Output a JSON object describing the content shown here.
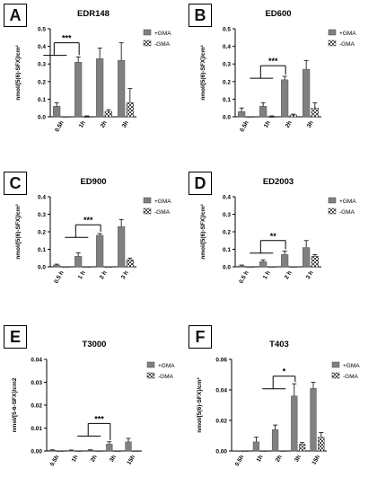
{
  "colors": {
    "plus_gma": "#808080",
    "minus_gma_fill": "#e8e8e8",
    "axis": "#000000"
  },
  "legend_icons": {
    "plus_gma": "solid-gray-swatch",
    "minus_gma": "checkered-swatch"
  },
  "panels": [
    {
      "letter": "A"
    },
    {
      "letter": "B"
    },
    {
      "letter": "C"
    },
    {
      "letter": "D"
    },
    {
      "letter": "E"
    },
    {
      "letter": "F"
    }
  ],
  "chart_data": [
    {
      "panel": "A",
      "type": "bar",
      "title": "EDR148",
      "ylabel": "nmol/[5(6)-SFX]/cm²",
      "categories": [
        "0.5h",
        "1h",
        "2h",
        "3h"
      ],
      "ylim": [
        0,
        0.5
      ],
      "yticks": [
        "0.0",
        "0.1",
        "0.2",
        "0.3",
        "0.4",
        "0.5"
      ],
      "ytick_values": [
        0,
        0.1,
        0.2,
        0.3,
        0.4,
        0.5
      ],
      "series": [
        {
          "name": "+GMA",
          "values": [
            0.06,
            0.31,
            0.33,
            0.32
          ],
          "errors": [
            0.02,
            0.03,
            0.06,
            0.1
          ]
        },
        {
          "name": "-GMA",
          "values": [
            0.0,
            0.0,
            0.03,
            0.08
          ],
          "errors": [
            0.0,
            0.005,
            0.01,
            0.08
          ]
        }
      ],
      "significance": [
        {
          "label": "***",
          "from": 0,
          "to": 1,
          "y": 0.42
        }
      ]
    },
    {
      "panel": "B",
      "type": "bar",
      "title": "ED600",
      "ylabel": "nmol/[5(6)-SFX]/cm²",
      "categories": [
        "0.5h",
        "1h",
        "2h",
        "3h"
      ],
      "ylim": [
        0,
        0.5
      ],
      "yticks": [
        "0.0",
        "0.1",
        "0.2",
        "0.3",
        "0.4",
        "0.5"
      ],
      "ytick_values": [
        0,
        0.1,
        0.2,
        0.3,
        0.4,
        0.5
      ],
      "series": [
        {
          "name": "+GMA",
          "values": [
            0.03,
            0.06,
            0.21,
            0.27
          ],
          "errors": [
            0.02,
            0.02,
            0.02,
            0.05
          ]
        },
        {
          "name": "-GMA",
          "values": [
            0.0,
            0.0,
            0.01,
            0.05
          ],
          "errors": [
            0.0,
            0.005,
            0.005,
            0.03
          ]
        }
      ],
      "significance": [
        {
          "label": "***",
          "from": 1,
          "to": 2,
          "y": 0.29
        }
      ]
    },
    {
      "panel": "C",
      "type": "bar",
      "title": "ED900",
      "ylabel": "nmol/[5(6)-SFX]/cm²",
      "categories": [
        "0.5 h",
        "1 h",
        "2 h",
        "3 h"
      ],
      "ylim": [
        0,
        0.4
      ],
      "yticks": [
        "0.0",
        "0.1",
        "0.2",
        "0.3",
        "0.4"
      ],
      "ytick_values": [
        0,
        0.1,
        0.2,
        0.3,
        0.4
      ],
      "series": [
        {
          "name": "+GMA",
          "values": [
            0.01,
            0.06,
            0.18,
            0.23
          ],
          "errors": [
            0.005,
            0.02,
            0.01,
            0.04
          ]
        },
        {
          "name": "-GMA",
          "values": [
            0.0,
            0.0,
            0.0,
            0.04
          ],
          "errors": [
            0.0,
            0.0,
            0.0,
            0.01
          ]
        }
      ],
      "significance": [
        {
          "label": "***",
          "from": 1,
          "to": 2,
          "y": 0.24
        }
      ]
    },
    {
      "panel": "D",
      "type": "bar",
      "title": "ED2003",
      "ylabel": "nmol/[5(6)-SFX]/cm²",
      "categories": [
        "0.5 h",
        "1 h",
        "2 h",
        "3 h"
      ],
      "ylim": [
        0,
        0.4
      ],
      "yticks": [
        "0.0",
        "0.1",
        "0.2",
        "0.3",
        "0.4"
      ],
      "ytick_values": [
        0,
        0.1,
        0.2,
        0.3,
        0.4
      ],
      "series": [
        {
          "name": "+GMA",
          "values": [
            0.005,
            0.03,
            0.07,
            0.11
          ],
          "errors": [
            0.005,
            0.01,
            0.02,
            0.04
          ]
        },
        {
          "name": "-GMA",
          "values": [
            0.0,
            0.0,
            0.0,
            0.06
          ],
          "errors": [
            0.0,
            0.0,
            0.0,
            0.01
          ]
        }
      ],
      "significance": [
        {
          "label": "**",
          "from": 1,
          "to": 2,
          "y": 0.15
        }
      ]
    },
    {
      "panel": "E",
      "type": "bar",
      "title": "T3000",
      "ylabel": "nmol/[5-6-SFX]/cm2",
      "categories": [
        "0.5h",
        "1h",
        "2h",
        "3h",
        "15h"
      ],
      "ylim": [
        0,
        0.04
      ],
      "yticks": [
        "0.00",
        "0.01",
        "0.02",
        "0.03",
        "0.04"
      ],
      "ytick_values": [
        0,
        0.01,
        0.02,
        0.03,
        0.04
      ],
      "series": [
        {
          "name": "+GMA",
          "values": [
            0.0003,
            0.0002,
            0.0003,
            0.003,
            0.004
          ],
          "errors": [
            0.0002,
            0.0002,
            0.0002,
            0.001,
            0.0015
          ]
        },
        {
          "name": "-GMA",
          "values": [
            0.0,
            0.0,
            0.0,
            0.0,
            0.0
          ],
          "errors": [
            0,
            0,
            0,
            0,
            0
          ]
        }
      ],
      "significance": [
        {
          "label": "***",
          "from": 2,
          "to": 3,
          "y": 0.012
        }
      ]
    },
    {
      "panel": "F",
      "type": "bar",
      "title": "T403",
      "ylabel": "nmol/[5(6)-SFX]/cm²",
      "categories": [
        "0.5h",
        "1h",
        "2h",
        "3h",
        "15h"
      ],
      "ylim": [
        0,
        0.06
      ],
      "yticks": [
        "0.00",
        "0.02",
        "0.04",
        "0.06"
      ],
      "ytick_values": [
        0,
        0.02,
        0.04,
        0.06
      ],
      "series": [
        {
          "name": "+GMA",
          "values": [
            0.0,
            0.006,
            0.014,
            0.036,
            0.041
          ],
          "errors": [
            0.0,
            0.003,
            0.003,
            0.008,
            0.004
          ]
        },
        {
          "name": "-GMA",
          "values": [
            0.0,
            0.0,
            0.0,
            0.0045,
            0.009
          ],
          "errors": [
            0.0,
            0.0,
            0.0,
            0.001,
            0.003
          ]
        }
      ],
      "significance": [
        {
          "label": "*",
          "from": 2,
          "to": 3,
          "y": 0.049
        }
      ]
    }
  ]
}
